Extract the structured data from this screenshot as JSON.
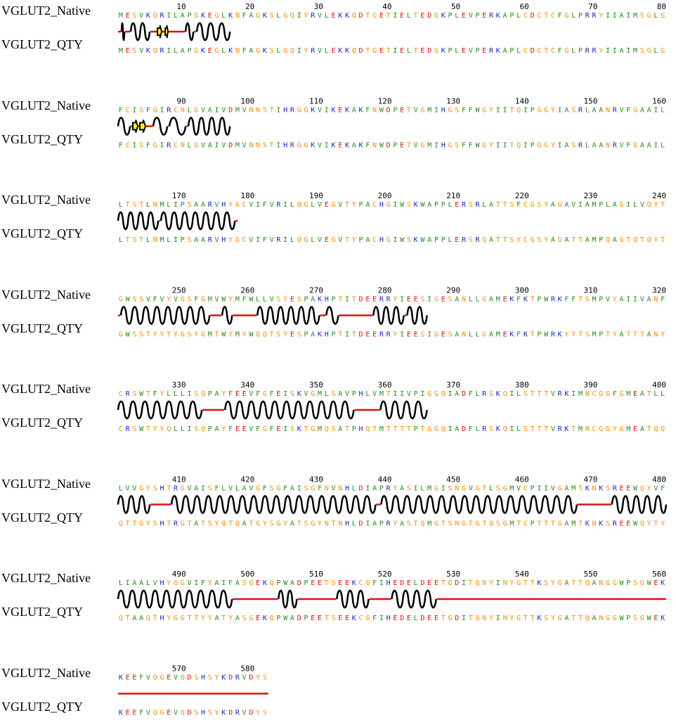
{
  "labels": {
    "native": "VGLUT2_Native",
    "qty": "VGLUT2_QTY"
  },
  "blocks": [
    {
      "numbers": [
        "10",
        "20",
        "30",
        "40",
        "50",
        "60",
        "70",
        "80"
      ],
      "native": "MESVKQRILAPGKEGLKNFAGKSLGQIYRVLEKKQDTGETIELTEDGKPLEVPERKAPLCDCTCFGLPRRYIIAIMSGLG",
      "qty": "MESVKQRILAPGKEGLKNFAGKSLGQIYRVLEKKQDTGETIELTEDGKPLEVPERKAPLCDCTCFGLPRRYIIAIMSGLG",
      "ss": [
        [
          "L",
          1,
          5
        ],
        [
          "H",
          6,
          10
        ],
        [
          "L",
          11,
          18
        ],
        [
          "H",
          19,
          46
        ],
        [
          "L",
          47,
          56
        ],
        [
          "E",
          57,
          63
        ],
        [
          "L",
          64,
          67
        ],
        [
          "E",
          68,
          72
        ],
        [
          "L",
          73,
          96
        ],
        [
          "H",
          97,
          108
        ],
        [
          "L",
          109,
          112
        ],
        [
          "H",
          113,
          160
        ]
      ]
    },
    {
      "numbers": [
        "90",
        "100",
        "110",
        "120",
        "130",
        "140",
        "150",
        "160"
      ],
      "native": "FCISFGIRCNLGVAIVDMVNNSTIHRGGKVIKEKAKFNWDPETVGMIHGSFFWGYIITQIPGGYIASRLAANRVFGAAIL",
      "qty": "FCISFGIRCNLGVAIVDMVNNSTIHRGGKVIKEKAKFNWDPETVGMIHGSFFWGYIITQIPGGYIASRLAANRVFGAAIL",
      "ss": [
        [
          "H",
          1,
          18
        ],
        [
          "L",
          19,
          21
        ],
        [
          "E",
          22,
          29
        ],
        [
          "L",
          30,
          31
        ],
        [
          "E",
          32,
          40
        ],
        [
          "L",
          41,
          50
        ],
        [
          "H",
          51,
          71
        ],
        [
          "L",
          72,
          73
        ],
        [
          "H",
          74,
          97
        ],
        [
          "L",
          98,
          100
        ],
        [
          "H",
          101,
          160
        ]
      ]
    },
    {
      "numbers": [
        "170",
        "180",
        "190",
        "200",
        "210",
        "220",
        "230",
        "240"
      ],
      "native": "LTSTLNMLIPSAARVHYGCVIFVRILQGLVEGVTYPACHGIWSKWAPPLERSRLATTSFCGSYAGAVIAMPLAGILVQYT",
      "qty": "LTSTLNMLIPSAARVHYGCVIFVRILQGLVEGVTYPACHGIWSKWAPPLERSRQATTSYCGSYAGATTAMPQAGTQTQYT",
      "ss": [
        [
          "H",
          1,
          58
        ],
        [
          "L",
          59,
          61
        ],
        [
          "H",
          62,
          167
        ],
        [
          "L",
          168,
          171
        ],
        [
          "H",
          172,
          160
        ]
      ]
    },
    {
      "numbers": [
        "250",
        "260",
        "270",
        "280",
        "290",
        "300",
        "310",
        "320"
      ],
      "native": "GWSSVFVYVGSFGMVWYMFWLLVSYESPAKHPTITDEERRYIEESIGESANLLGAMEKFKTPWRKFFTSMPVYAIIVANF",
      "qty": "GWSSTYYTYGSYGMTWYMYWQQTSYESPAKHPTITDEERRYIEESIGESANLLGAMEKFKTPWRKYYTSMPTYATTTANY",
      "ss": [
        [
          "L",
          1,
          4
        ],
        [
          "H",
          5,
          131
        ],
        [
          "L",
          132,
          148
        ],
        [
          "H",
          149,
          163
        ],
        [
          "L",
          164,
          198
        ],
        [
          "H",
          199,
          287
        ],
        [
          "L",
          288,
          296
        ],
        [
          "H",
          297,
          314
        ],
        [
          "L",
          315,
          363
        ],
        [
          "H",
          364,
          407
        ],
        [
          "L",
          408,
          411
        ],
        [
          "H",
          412,
          440
        ]
      ]
    },
    {
      "numbers": [
        "330",
        "340",
        "350",
        "360",
        "370",
        "380",
        "390",
        "400"
      ],
      "native": "CRSWTFYLLLISQPAYFEEVFGFEISKVGMLSAVPHLVMTIIVPIGGQIADFLRSKQILSTTTVRKIMNCGGFGMEATLL",
      "qty": "CRSWTYYQLLISQPAYFEEVFGFEISKTGMQSATPHQTMTTTTPTGGQIADFLRSKQILSTTTVRKTMNCGGYGMEATQQ",
      "ss": [
        [
          "H",
          1,
          120
        ],
        [
          "L",
          121,
          152
        ],
        [
          "H",
          153,
          336
        ],
        [
          "L",
          337,
          373
        ],
        [
          "H",
          374,
          440
        ]
      ]
    },
    {
      "numbers": [
        "410",
        "420",
        "430",
        "440",
        "450",
        "460",
        "470",
        "480"
      ],
      "native": "LVVGYSHTRGVAISFLVLAVGFSGFAISGFNVNHLDIAPRYASILMGISNGVGTLSGMVCPIIVGAMTKNKSREEWQYVF",
      "qty": "QTTGYSHTRGTATSYQTQATGYSGYATSGYNTNHLDIAPRYASTQMGTSNGTGTQSGMTCPTTTGAMTKNKSREEWQYTY",
      "ss": [
        [
          "H",
          1,
          46
        ],
        [
          "L",
          47,
          76
        ],
        [
          "H",
          77,
          367
        ],
        [
          "L",
          368,
          374
        ],
        [
          "H",
          375,
          653
        ],
        [
          "L",
          654,
          702
        ],
        [
          "H",
          703,
          780
        ]
      ]
    },
    {
      "numbers": [
        "490",
        "500",
        "510",
        "520",
        "530",
        "540",
        "550",
        "560"
      ],
      "native": "LIAALVHYGGVIFYAIFASGEKQPWADPEETSEEKCGFIHEDELDEETGDITQNYINYGTTKSYGATTQANGGWPSGWEK",
      "qty": "QTAAQTHYGGTTYYATYASGEKQPWADPEETSEEKCGFIHEDELDEETGDITQNYINYGTTKSYGATTQANGGWPSGWEK",
      "ss": [
        [
          "H",
          1,
          163
        ],
        [
          "L",
          164,
          228
        ],
        [
          "H",
          229,
          255
        ],
        [
          "L",
          256,
          311
        ],
        [
          "H",
          312,
          357
        ],
        [
          "L",
          358,
          389
        ],
        [
          "H",
          390,
          453
        ],
        [
          "L",
          454,
          780
        ]
      ]
    },
    {
      "numbers": [
        "570",
        "580"
      ],
      "native": "KEEFVQGEVQDSHSYKDRVDYS",
      "qty": "KEEFVQGEVQDSHSYKDRVDYS",
      "ss": [
        [
          "L",
          1,
          215
        ]
      ]
    }
  ],
  "colors": {
    "helix": "#000000",
    "loop": "#dd1111",
    "strand_fill": "#ffff00",
    "aa": {
      "A": "#228b22",
      "V": "#228b22",
      "L": "#228b22",
      "I": "#228b22",
      "M": "#228b22",
      "F": "#228b22",
      "W": "#228b22",
      "P": "#228b22",
      "G": "#ff8c00",
      "S": "#ff8c00",
      "T": "#ff8c00",
      "C": "#ff8c00",
      "Y": "#ff8c00",
      "N": "#ff8c00",
      "Q": "#ff8c00",
      "D": "#dd1111",
      "E": "#dd1111",
      "K": "#2222cc",
      "R": "#2222cc",
      "H": "#2222cc"
    }
  }
}
